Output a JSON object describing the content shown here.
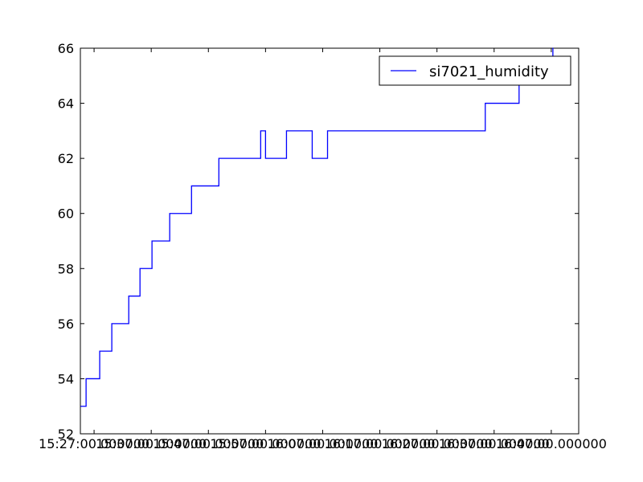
{
  "chart_data": {
    "type": "line",
    "x": [
      "15:24:37",
      "15:25:36",
      "15:25:36",
      "15:27:59",
      "15:27:59",
      "15:30:06",
      "15:30:06",
      "15:33:04",
      "15:33:04",
      "15:35:02",
      "15:35:02",
      "15:37:08",
      "15:37:08",
      "15:40:14",
      "15:40:14",
      "15:44:03",
      "15:44:03",
      "15:48:50",
      "15:48:50",
      "15:56:09",
      "15:56:09",
      "15:57:00",
      "15:57:00",
      "16:00:40",
      "16:00:40",
      "16:05:10",
      "16:05:10",
      "16:07:51",
      "16:07:51",
      "16:35:27",
      "16:35:27",
      "16:41:22",
      "16:41:22",
      "16:47:17",
      "16:47:17",
      "16:47:20"
    ],
    "series": [
      {
        "name": "si7021_humidity",
        "color": "#0000ff",
        "values": [
          53,
          53,
          54,
          54,
          55,
          55,
          56,
          56,
          57,
          57,
          58,
          58,
          59,
          59,
          60,
          60,
          61,
          61,
          62,
          62,
          63,
          63,
          62,
          62,
          63,
          63,
          62,
          62,
          63,
          63,
          64,
          64,
          65,
          65,
          66,
          66
        ]
      }
    ],
    "xlim": [
      "15:24:36",
      "16:51:48"
    ],
    "xticks": [
      {
        "value": "15:27:00",
        "label": "15:27:00.000000"
      },
      {
        "value": "15:37:00",
        "label": "15:37:00.000000"
      },
      {
        "value": "15:47:00",
        "label": "15:47:00.000000"
      },
      {
        "value": "15:57:00",
        "label": "15:57:00.000000"
      },
      {
        "value": "16:07:00",
        "label": "16:07:00.000000"
      },
      {
        "value": "16:17:00",
        "label": "16:17:00.000000"
      },
      {
        "value": "16:27:00",
        "label": "16:27:00.000000"
      },
      {
        "value": "16:37:00",
        "label": "16:37:00.000000"
      },
      {
        "value": "16:47:00",
        "label": "16:47:00.000000"
      }
    ],
    "ylim": [
      52,
      66
    ],
    "yticks": [
      52,
      54,
      56,
      58,
      60,
      62,
      64,
      66
    ],
    "grid": false,
    "legend": "upper right"
  }
}
